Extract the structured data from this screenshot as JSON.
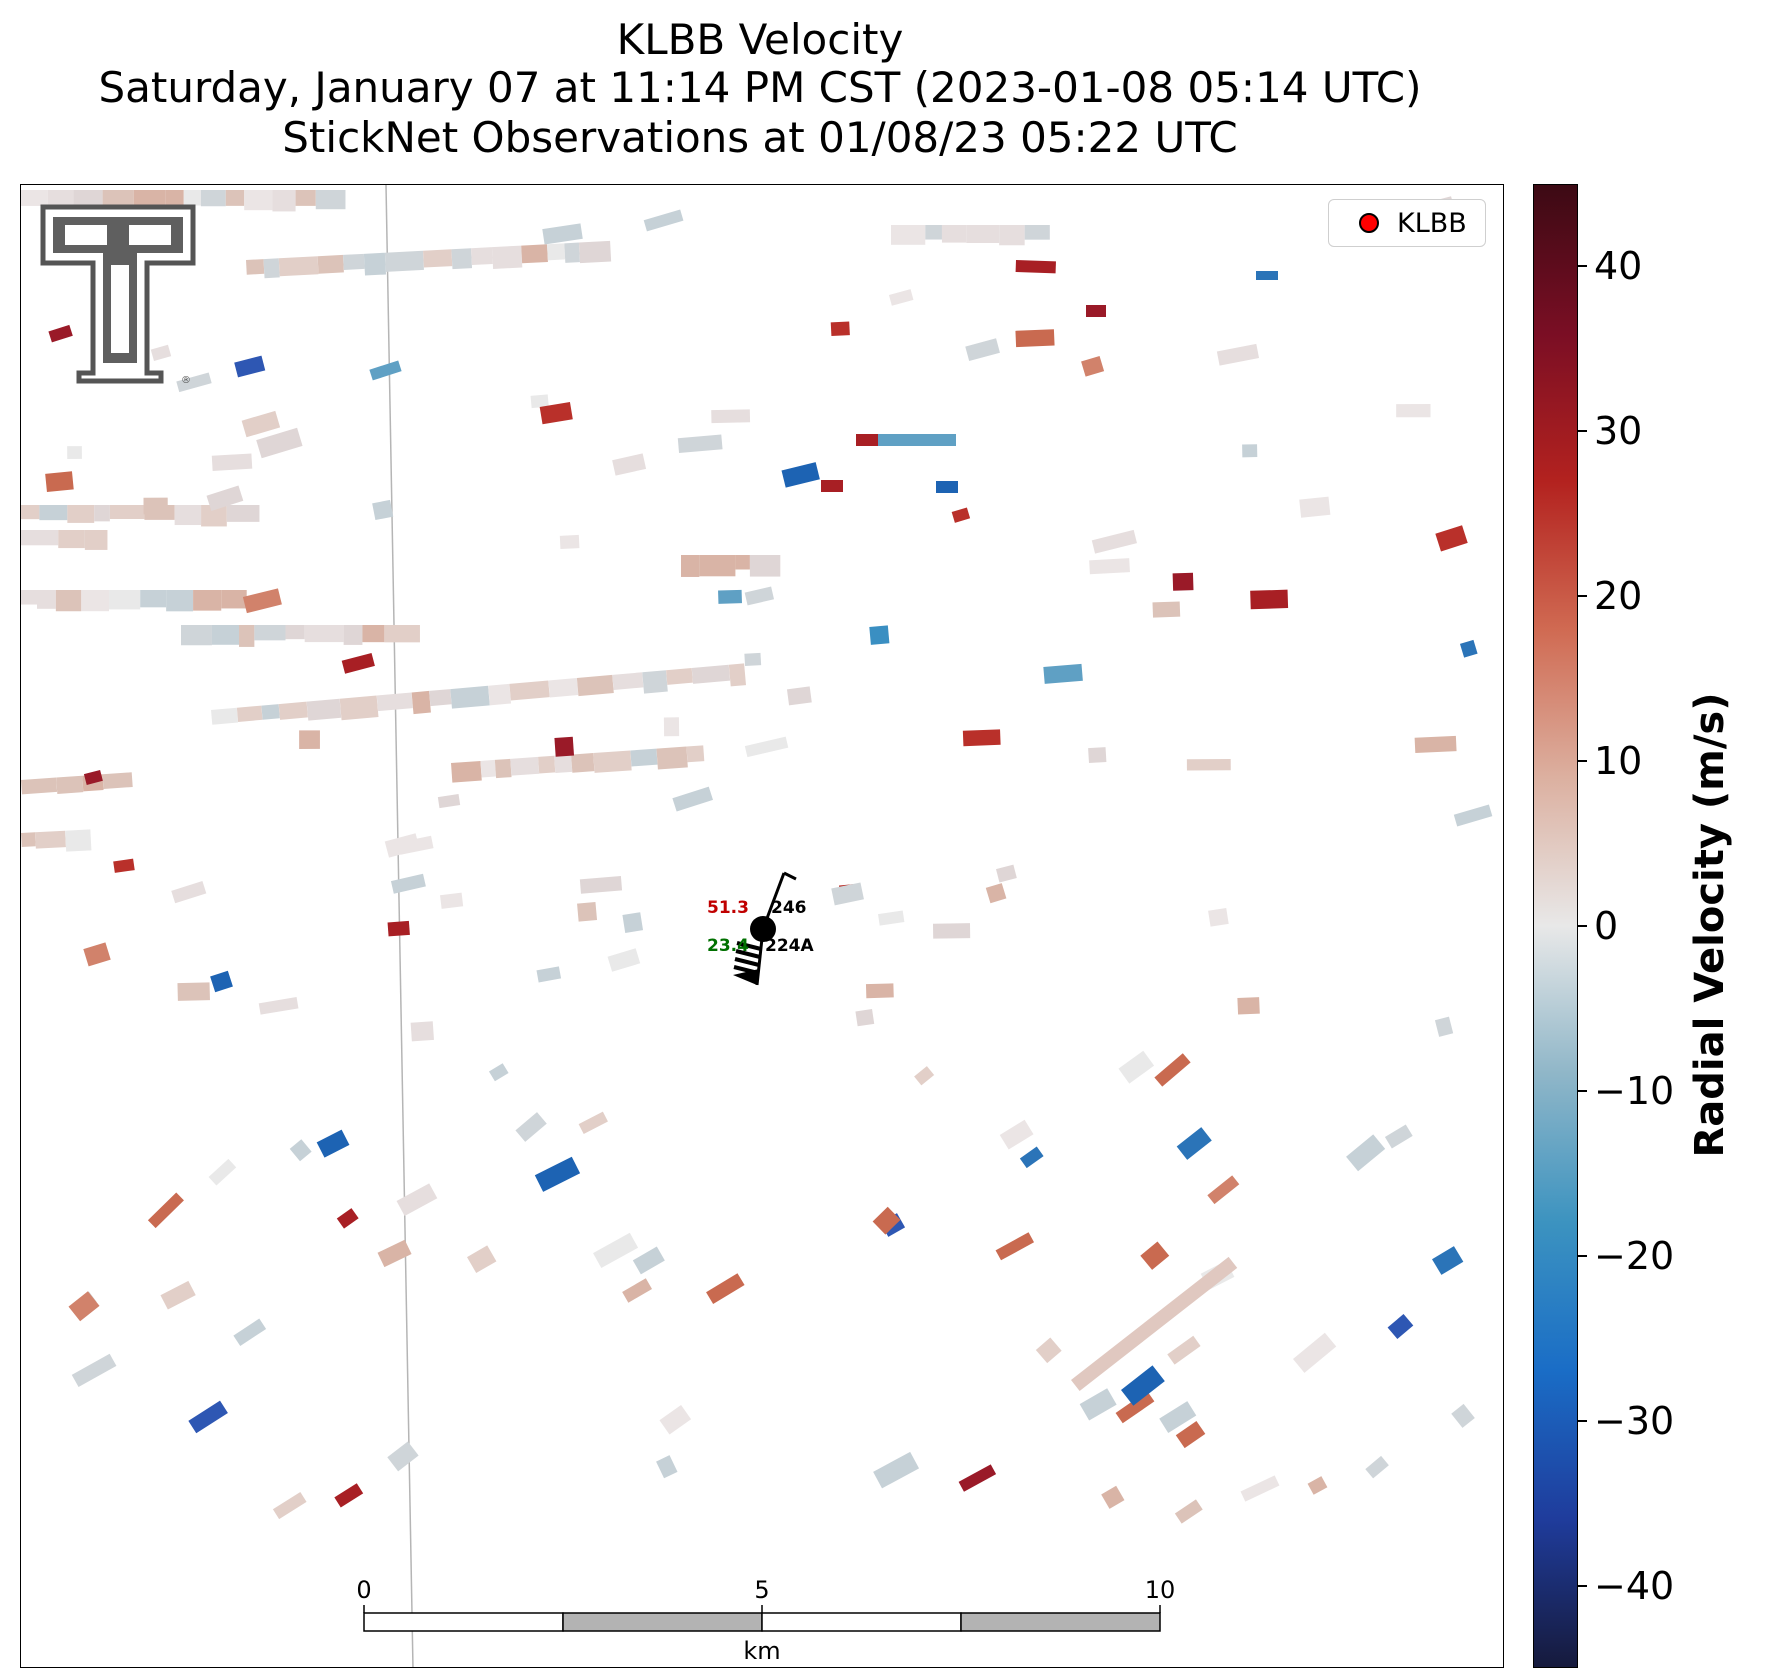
{
  "title": {
    "line1": "KLBB Velocity",
    "line2": "Saturday, January 07 at 11:14 PM CST (2023-01-08 05:14 UTC)",
    "line3": "StickNet Observations at 01/08/23 05:22 UTC"
  },
  "legend": {
    "label": "KLBB",
    "marker_color": "#ff0000"
  },
  "colorbar": {
    "label": "Radial Velocity (m/s)",
    "range": [
      -45,
      45
    ],
    "ticks": [
      "40",
      "30",
      "20",
      "10",
      "0",
      "−10",
      "−20",
      "−30",
      "−40"
    ],
    "tick_values": [
      40,
      30,
      20,
      10,
      0,
      -10,
      -20,
      -30,
      -40
    ],
    "colormap": [
      "#161a3c",
      "#1f3c9c",
      "#1a6dc6",
      "#3c93c0",
      "#8fb6c8",
      "#e8e8e8",
      "#dcb0a0",
      "#d06a52",
      "#b3221f",
      "#7a0e24",
      "#3c0a14"
    ]
  },
  "station": {
    "temperature": "51.3",
    "dewpoint": "23.4",
    "pressure_code": "246",
    "station_id": "224A",
    "temperature_color": "#c00000",
    "dewpoint_color": "#007000"
  },
  "scale_bar": {
    "ticks": [
      "0",
      "5",
      "10"
    ],
    "unit": "km"
  },
  "logo": {
    "name": "Texas Tech Double T"
  }
}
